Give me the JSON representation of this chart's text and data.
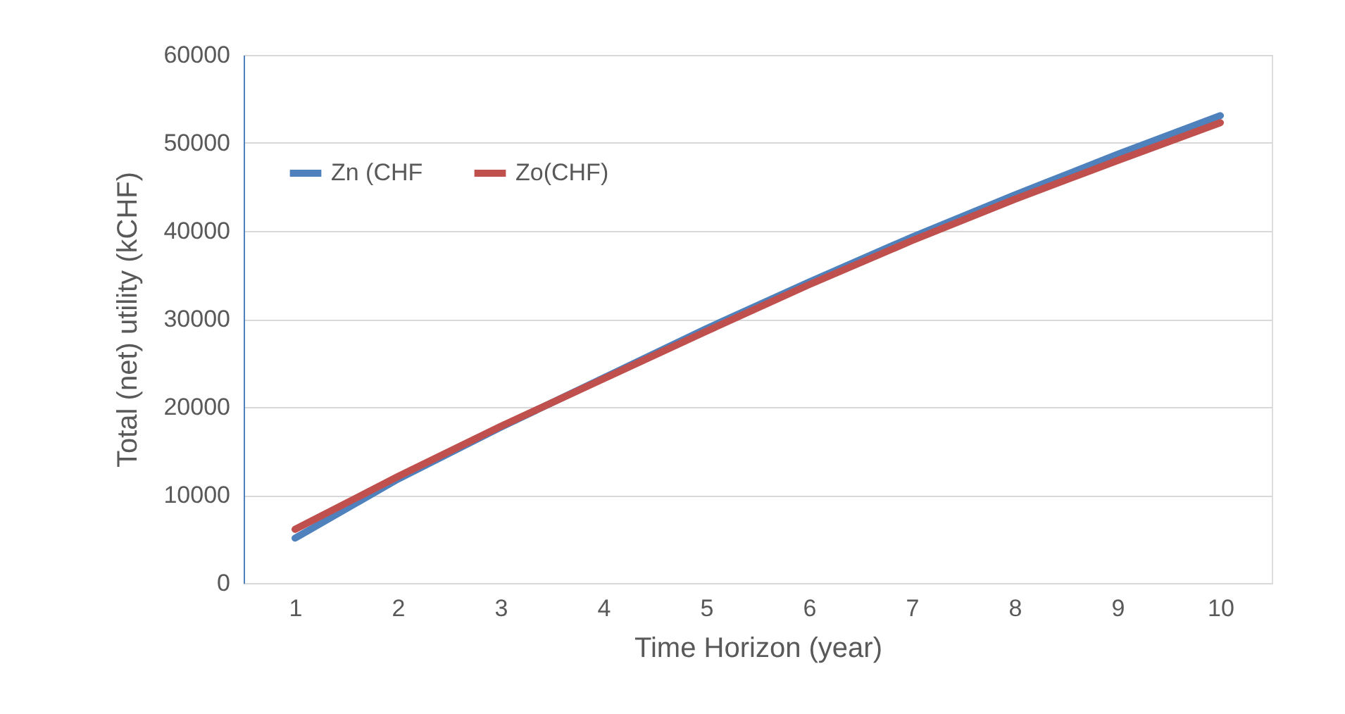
{
  "chart_data": {
    "type": "line",
    "xlabel": "Time Horizon (year)",
    "ylabel": "Total (net) utility  (kCHF)",
    "categories": [
      "1",
      "2",
      "3",
      "4",
      "5",
      "6",
      "7",
      "8",
      "9",
      "10"
    ],
    "series": [
      {
        "name": "Zn (CHF",
        "color": "#4f81bd",
        "values": [
          5100,
          11800,
          17700,
          23300,
          28900,
          34200,
          39300,
          44100,
          48700,
          53100
        ]
      },
      {
        "name": "Zo(CHF)",
        "color": "#c0504d",
        "values": [
          6100,
          12100,
          17800,
          23200,
          28600,
          33900,
          38900,
          43600,
          48000,
          52300
        ]
      }
    ],
    "ylim": [
      0,
      60000
    ],
    "yticks": [
      0,
      10000,
      20000,
      30000,
      40000,
      50000,
      60000
    ],
    "grid": "y",
    "legend": "top left",
    "marker": "none",
    "line_style": "solid"
  }
}
